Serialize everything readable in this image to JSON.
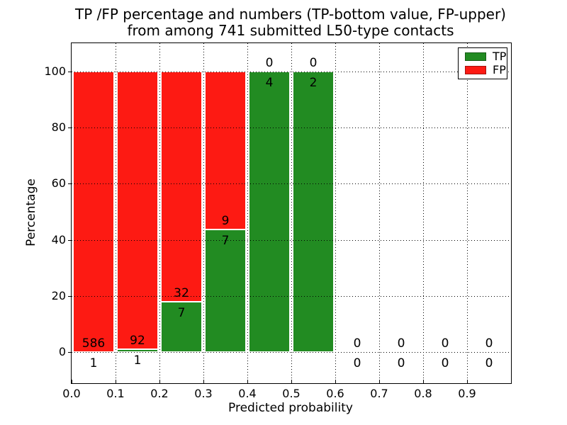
{
  "chart_data": {
    "type": "bar",
    "stacked": true,
    "title_line1": "TP /FP percentage and numbers (TP-bottom value, FP-upper)",
    "title_line2": "from among 741 submitted L50-type contacts",
    "xlabel": "Predicted probability",
    "ylabel": "Percentage",
    "total_contacts": 741,
    "xlim": [
      0,
      1.0
    ],
    "ylim": [
      -11,
      110
    ],
    "grid": true,
    "legend_position": "upper right",
    "legend": [
      {
        "label": "TP",
        "color": "#228b22"
      },
      {
        "label": "FP",
        "color": "#fd1a13"
      }
    ],
    "colors": {
      "tp": "#228b22",
      "fp": "#fd1a13",
      "text": "#000000",
      "grid": "#000000",
      "background": "#ffffff"
    },
    "categories": [
      "0.0-0.1",
      "0.1-0.2",
      "0.2-0.3",
      "0.3-0.4",
      "0.4-0.5",
      "0.5-0.6",
      "0.6-0.7",
      "0.7-0.8",
      "0.8-0.9",
      "0.9-1.0"
    ],
    "series": [
      {
        "name": "TP",
        "values": [
          1,
          1,
          7,
          7,
          4,
          2,
          0,
          0,
          0,
          0
        ]
      },
      {
        "name": "FP",
        "values": [
          586,
          92,
          32,
          9,
          0,
          0,
          0,
          0,
          0,
          0
        ]
      }
    ],
    "xticks": [
      "0.0",
      "0.1",
      "0.2",
      "0.3",
      "0.4",
      "0.5",
      "0.6",
      "0.7",
      "0.8",
      "0.9"
    ],
    "yticks": [
      0,
      20,
      40,
      60,
      80,
      100
    ],
    "bins": [
      {
        "x0": 0.0,
        "x1": 0.1,
        "tp": 1,
        "fp": 586,
        "tp_pct": 0.17,
        "has_bar": true
      },
      {
        "x0": 0.1,
        "x1": 0.2,
        "tp": 1,
        "fp": 92,
        "tp_pct": 1.08,
        "has_bar": true
      },
      {
        "x0": 0.2,
        "x1": 0.3,
        "tp": 7,
        "fp": 32,
        "tp_pct": 17.95,
        "has_bar": true
      },
      {
        "x0": 0.3,
        "x1": 0.4,
        "tp": 7,
        "fp": 9,
        "tp_pct": 43.75,
        "has_bar": true
      },
      {
        "x0": 0.4,
        "x1": 0.5,
        "tp": 4,
        "fp": 0,
        "tp_pct": 100,
        "has_bar": true
      },
      {
        "x0": 0.5,
        "x1": 0.6,
        "tp": 2,
        "fp": 0,
        "tp_pct": 100,
        "has_bar": true
      },
      {
        "x0": 0.6,
        "x1": 0.7,
        "tp": 0,
        "fp": 0,
        "tp_pct": 0,
        "has_bar": false
      },
      {
        "x0": 0.7,
        "x1": 0.8,
        "tp": 0,
        "fp": 0,
        "tp_pct": 0,
        "has_bar": false
      },
      {
        "x0": 0.8,
        "x1": 0.9,
        "tp": 0,
        "fp": 0,
        "tp_pct": 0,
        "has_bar": false
      },
      {
        "x0": 0.9,
        "x1": 1.0,
        "tp": 0,
        "fp": 0,
        "tp_pct": 0,
        "has_bar": false
      }
    ]
  }
}
